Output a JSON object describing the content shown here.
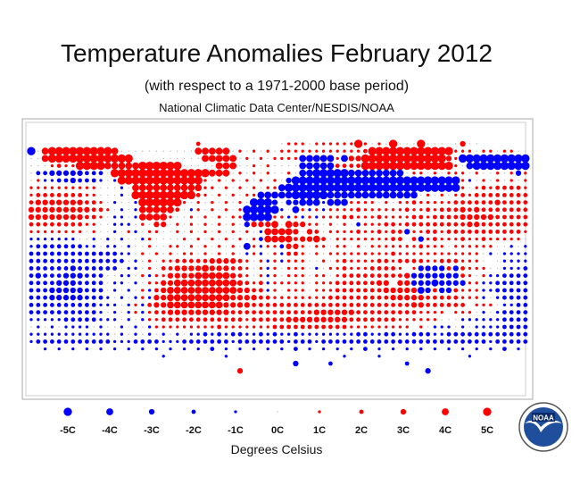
{
  "header": {
    "title": "Temperature Anomalies February 2012",
    "subtitle": "(with respect to a 1971-2000 base period)",
    "credit": "National Climatic Data Center/NESDIS/NOAA"
  },
  "legend": {
    "items": [
      {
        "label": "-5C",
        "value": -5
      },
      {
        "label": "-4C",
        "value": -4
      },
      {
        "label": "-3C",
        "value": -3
      },
      {
        "label": "-2C",
        "value": -2
      },
      {
        "label": "-1C",
        "value": -1
      },
      {
        "label": "0C",
        "value": 0
      },
      {
        "label": "1C",
        "value": 1
      },
      {
        "label": "2C",
        "value": 2
      },
      {
        "label": "3C",
        "value": 3
      },
      {
        "label": "4C",
        "value": 4
      },
      {
        "label": "5C",
        "value": 5
      }
    ],
    "units_label": "Degrees Celsius"
  },
  "logo": {
    "text": "NOAA"
  },
  "colors": {
    "warm": "#ff0000",
    "cold": "#0000ff",
    "zero": "#bbbbbb",
    "outline": "#999999"
  },
  "chart_data": {
    "type": "scatter",
    "map_projection": "equirectangular",
    "grid_spacing_degrees": 5,
    "anomaly_rows": [
      "                        2           011101111115101050005000 0300        ",
      "e04555555555400000000000444440101010111111111111255555555555511101101100",
      "004555555555555    00000044444010101111ddddd1d3355555555555531eeeeeeeeee",
      "000121155554444455555500000444001010000ddddd2222555555555555510deeeeeeee",
      "0bbcccccbbb0555555555555554440101010010ddeeeeedddddddd0110101110100101c10",
      "01aabbcbbba0a555555555555101010101010ceeeeeeeeeeeeeeeeeeeeeeee1a01010101",
      "1111111111000a0444444444411010101011deeeeeeeeeeeeeeeeeeeeeeeee1012122221",
      "1222222211000a0555555555210101011dddddeeeeeddddddddddddd01010121222222221",
      "233333332210a00a5555551010101010eeec0ccdddaddd11110101121111122222232222",
      "3333333332210a0a4444420a1010101eeeeea0d1a1a11112111111211212223232222222",
      "333333332210aa0a444410010101011eeee11a1a1a111221112111122122223333322222",
      "222222221100aaa0103301010101010c333404331101010b1112212222222223322222222",
      "111111110100a01a01100101010101010a44443032011112112122c11221222222222221",
      "aaaaaaa00a0a0a00a1000010101010101b44442334201111111122 2c1211121121111101",
      "abbbbbbbaa0aa0a0010011010101010d1a11b33101101101011111112111011111100a0a",
      "bbbbbbbbbbbbbaa0101010110101010a1a01a22101011111111121111111111110a0aaaa",
      "bbbbbbbbbbbbbb0a010112222233332101a1a11100101211112212222112221110 0aaaaa",
      "bbbbbbcbbbbbb0aa010223333433322101a101110a011211122221 1cccc2c211100aaabb",
      "bcbbbcccbbb00aa01a1133334444432101a10111011012222222223ccccccc2101aabbbb",
      "bbbbcccbbbb0aa0a011334444444443212a11111011122222233 33cccdcccc11aabbbbb",
      "bbbcccccbbb0a0a01a2344444444443322a101110111222222233333dc2cc2111aabbbbb",
      "bbbcccccbbba0a0a1a33444444444333322111111112222222223333322222111a0abbbbb",
      "bbbbbbbbbbaaa0a1a2334444444433332222222222222222222222233222222 1110aabbbb",
      "bbbbbbbbbba0a0a1a1223333333332222222222223333332222222221111 1110a0abbbbb",
      "aaaaabbbbbaaa0a0a112222222222221222223333333332222222111111000aaaaaabbbb",
      "0a0a0aaaa0a00a0a0a1111111112111111122222222222111111111 10aaa0a0aaaabbbbbb",
      "aaaaaaaaaaaa0a0a0a0a0a0aabababbaababaabaaaaaaaabbaabbaabbbaabbbbbbbbbbbb",
      "abbbbbbbbbbbaaabbbbaaabbbbbbbabbbbbbbabbbabbbbbbbbbbbbbbbbbbbbbbbbabbbbb",
      "  a a a a a a a a a a a a b a a a a a b a a a a b a a a a a a a a a b a ",
      "                   a        a                a    a            a       ",
      "                                      c    b          b                 ",
      "                              3                          c              "
    ]
  }
}
